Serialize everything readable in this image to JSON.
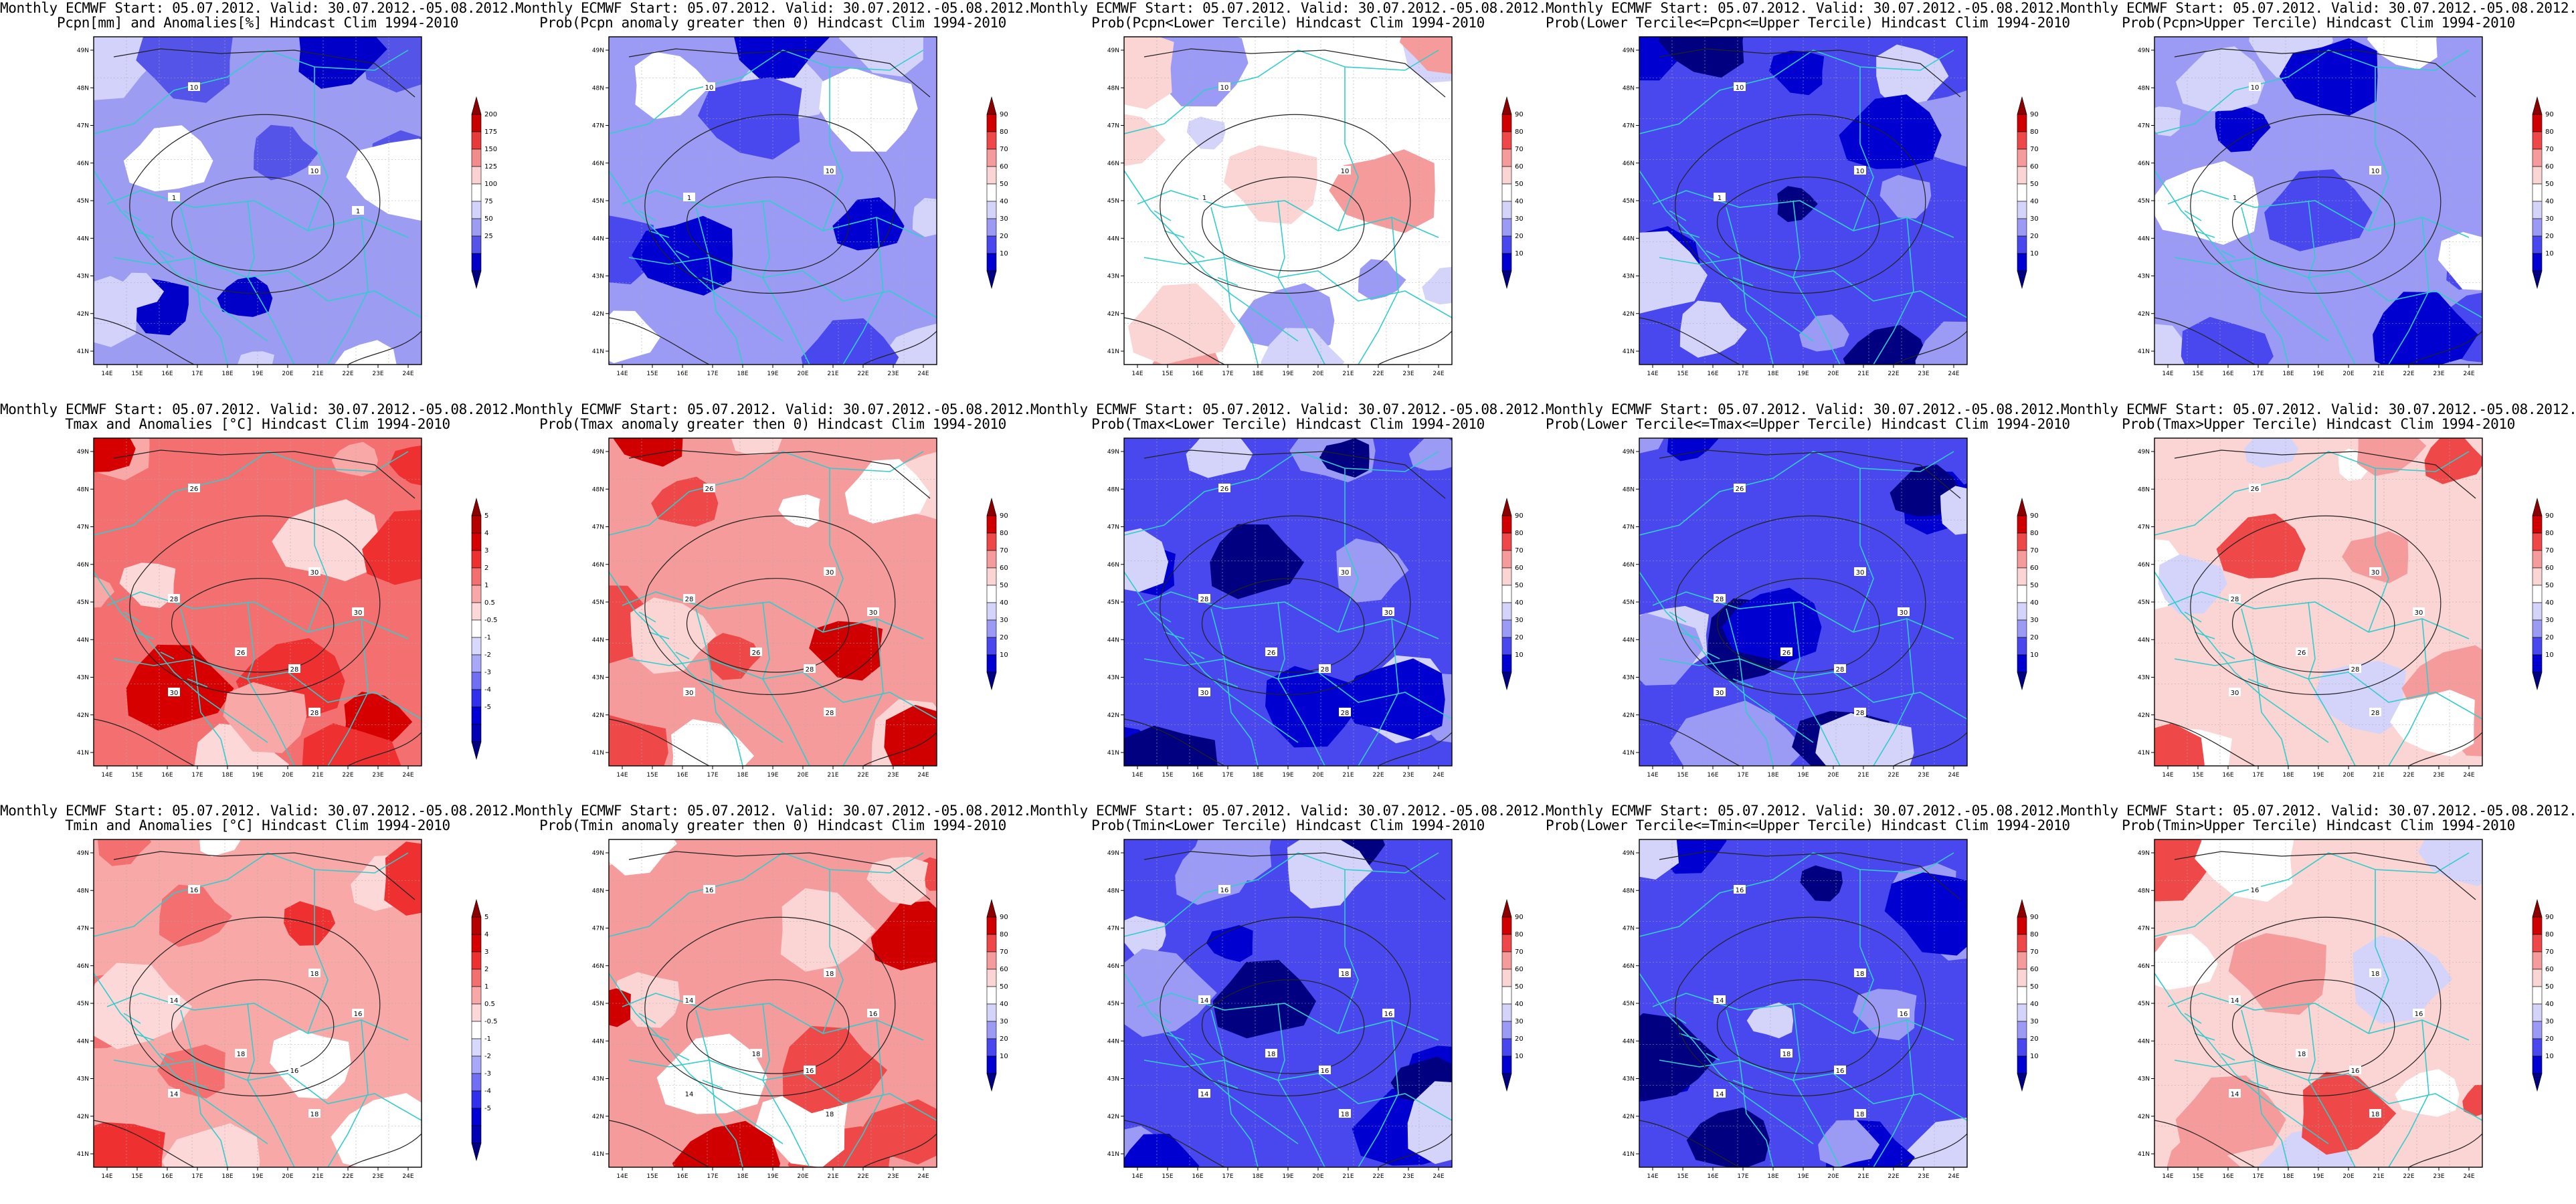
{
  "common_title": "Monthly ECMWF Start: 05.07.2012. Valid: 30.07.2012.-05.08.2012.",
  "lon_ticks": [
    "14E",
    "15E",
    "16E",
    "17E",
    "18E",
    "19E",
    "20E",
    "21E",
    "22E",
    "23E",
    "24E"
  ],
  "lat_ticks": [
    "49N",
    "48N",
    "47N",
    "46N",
    "45N",
    "44N",
    "43N",
    "42N",
    "41N"
  ],
  "colorbars": {
    "pcpn_anom": {
      "labels": [
        "200",
        "175",
        "150",
        "125",
        "100",
        "75",
        "50",
        "25"
      ],
      "colors": [
        "#8b0000",
        "#c90000",
        "#e83a3a",
        "#f28c8c",
        "#fbd2d2",
        "#ffffff",
        "#d2d2fb",
        "#9c9cf2",
        "#5454e8",
        "#0000c9",
        "#000080"
      ]
    },
    "t_anom": {
      "labels": [
        "5",
        "4",
        "3",
        "2",
        "1",
        "0.5",
        "-0.5",
        "-1",
        "-2",
        "-3",
        "-4",
        "-5"
      ],
      "colors": [
        "#8b0000",
        "#b50000",
        "#d60000",
        "#ee3030",
        "#f47070",
        "#f9a8a8",
        "#fcd8d8",
        "#ffffff",
        "#d8d8fc",
        "#a8a8f9",
        "#7070f4",
        "#3030ee",
        "#0000d6",
        "#0000b5",
        "#000080"
      ]
    },
    "prob": {
      "labels": [
        "90",
        "80",
        "70",
        "60",
        "50",
        "40",
        "30",
        "20",
        "10"
      ],
      "colors": [
        "#8b0000",
        "#d10000",
        "#ee4848",
        "#f59b9b",
        "#fbd4d4",
        "#ffffff",
        "#d4d4fb",
        "#9b9bf5",
        "#4848ee",
        "#0000d1",
        "#000080"
      ]
    }
  },
  "colors": {
    "border": "#33cccc",
    "contour": "#222222",
    "frame": "#000000",
    "grid": "#aaaaaa"
  },
  "panels": [
    {
      "subtitle": "Pcpn[mm] and Anomalies[%] Hindcast Clim 1994-2010",
      "colorbar": "pcpn_anom",
      "base": "#9c9cf2",
      "labels": [
        "10",
        "10",
        "1",
        "1"
      ]
    },
    {
      "subtitle": "Prob(Pcpn anomaly greater then 0) Hindcast Clim 1994-2010",
      "colorbar": "prob",
      "base": "#9b9bf5",
      "labels": [
        "10",
        "10",
        "1"
      ]
    },
    {
      "subtitle": "Prob(Pcpn<Lower Tercile) Hindcast Clim 1994-2010",
      "colorbar": "prob",
      "base": "#ffffff",
      "labels": [
        "10",
        "10",
        "1"
      ]
    },
    {
      "subtitle": "Prob(Lower Tercile<=Pcpn<=Upper Tercile) Hindcast Clim 1994-2010",
      "colorbar": "prob",
      "base": "#4848ee",
      "labels": [
        "10",
        "10",
        "1"
      ]
    },
    {
      "subtitle": "Prob(Pcpn>Upper Tercile) Hindcast Clim 1994-2010",
      "colorbar": "prob",
      "base": "#9b9bf5",
      "labels": [
        "10",
        "10",
        "1"
      ]
    },
    {
      "subtitle": "Tmax and Anomalies [°C] Hindcast Clim 1994-2010",
      "colorbar": "t_anom",
      "base": "#f47070",
      "labels": [
        "26",
        "30",
        "28",
        "30",
        "26",
        "28",
        "30",
        "28"
      ]
    },
    {
      "subtitle": "Prob(Tmax anomaly greater then 0) Hindcast Clim 1994-2010",
      "colorbar": "prob",
      "base": "#f59b9b",
      "labels": [
        "26",
        "30",
        "28",
        "30",
        "26",
        "28",
        "30",
        "28"
      ]
    },
    {
      "subtitle": "Prob(Tmax<Lower Tercile) Hindcast Clim 1994-2010",
      "colorbar": "prob",
      "base": "#4848ee",
      "labels": [
        "26",
        "30",
        "28",
        "30",
        "26",
        "28",
        "30",
        "28"
      ]
    },
    {
      "subtitle": "Prob(Lower Tercile<=Tmax<=Upper Tercile) Hindcast Clim 1994-2010",
      "colorbar": "prob",
      "base": "#4848ee",
      "labels": [
        "26",
        "30",
        "28",
        "30",
        "26",
        "28",
        "30",
        "28"
      ]
    },
    {
      "subtitle": "Prob(Tmax>Upper Tercile) Hindcast Clim 1994-2010",
      "colorbar": "prob",
      "base": "#fbd4d4",
      "labels": [
        "26",
        "30",
        "28",
        "30",
        "26",
        "28",
        "30",
        "28"
      ]
    },
    {
      "subtitle": "Tmin and Anomalies [°C] Hindcast Clim 1994-2010",
      "colorbar": "t_anom",
      "base": "#f9a8a8",
      "labels": [
        "16",
        "18",
        "14",
        "16",
        "18",
        "16",
        "14",
        "18"
      ]
    },
    {
      "subtitle": "Prob(Tmin anomaly greater then 0) Hindcast Clim 1994-2010",
      "colorbar": "prob",
      "base": "#f59b9b",
      "labels": [
        "16",
        "18",
        "14",
        "16",
        "18",
        "16",
        "14",
        "18"
      ]
    },
    {
      "subtitle": "Prob(Tmin<Lower Tercile) Hindcast Clim 1994-2010",
      "colorbar": "prob",
      "base": "#4848ee",
      "labels": [
        "16",
        "18",
        "14",
        "16",
        "18",
        "16",
        "14",
        "18"
      ]
    },
    {
      "subtitle": "Prob(Lower Tercile<=Tmin<=Upper Tercile) Hindcast Clim 1994-2010",
      "colorbar": "prob",
      "base": "#4848ee",
      "labels": [
        "16",
        "18",
        "14",
        "16",
        "18",
        "16",
        "14",
        "18"
      ]
    },
    {
      "subtitle": "Prob(Tmin>Upper Tercile) Hindcast Clim 1994-2010",
      "colorbar": "prob",
      "base": "#fbd4d4",
      "labels": [
        "16",
        "18",
        "14",
        "16",
        "18",
        "16",
        "14",
        "18"
      ]
    }
  ]
}
